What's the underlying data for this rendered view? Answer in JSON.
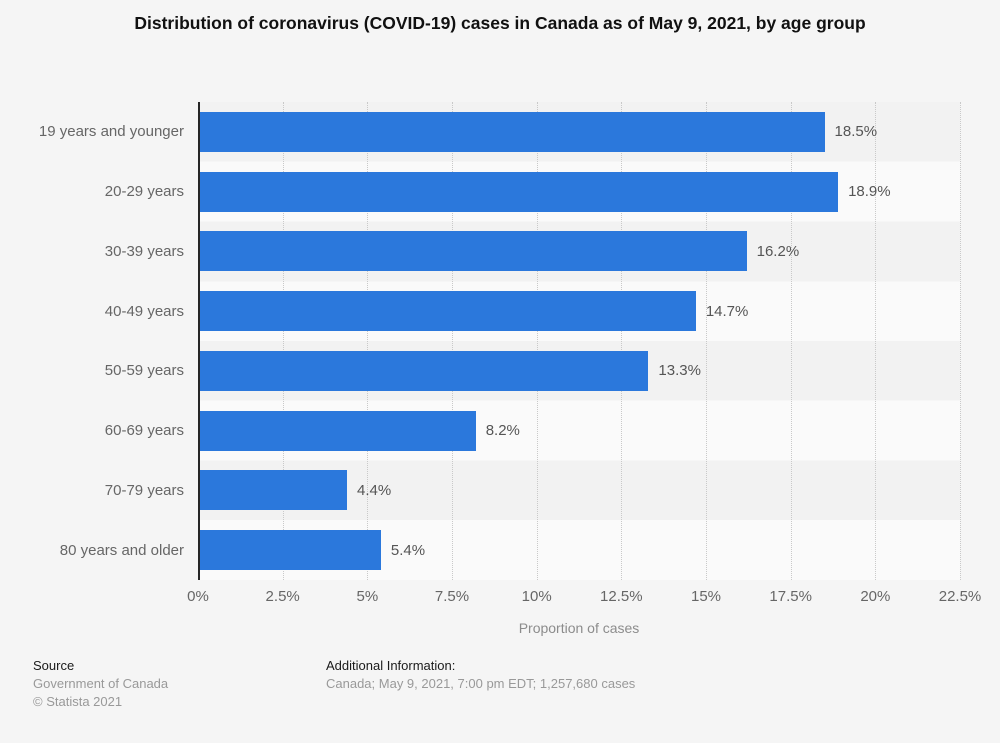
{
  "title": "Distribution of coronavirus (COVID-19) cases in Canada as of May 9, 2021, by age group",
  "chart_data": {
    "type": "bar",
    "orientation": "horizontal",
    "categories": [
      "19 years and younger",
      "20-29 years",
      "30-39 years",
      "40-49 years",
      "50-59 years",
      "60-69 years",
      "70-79 years",
      "80 years and older"
    ],
    "values": [
      18.5,
      18.9,
      16.2,
      14.7,
      13.3,
      8.2,
      4.4,
      5.4
    ],
    "value_labels": [
      "18.5%",
      "18.9%",
      "16.2%",
      "14.7%",
      "13.3%",
      "8.2%",
      "4.4%",
      "5.4%"
    ],
    "xlabel": "Proportion of cases",
    "ylabel": "",
    "xlim": [
      0,
      22.5
    ],
    "ticks": [
      0,
      2.5,
      5,
      7.5,
      10,
      12.5,
      15,
      17.5,
      20,
      22.5
    ],
    "tick_labels": [
      "0%",
      "2.5%",
      "5%",
      "7.5%",
      "10%",
      "12.5%",
      "15%",
      "17.5%",
      "20%",
      "22.5%"
    ],
    "grid": "vertical-dotted",
    "legend": "none",
    "colors": {
      "bar": "#2b78dc",
      "stripe_odd": "#f2f2f2",
      "stripe_even": "#fafafa",
      "axis_line": "#262626",
      "gridline": "#c9c9c9",
      "page_background": "#f5f5f5"
    }
  },
  "footer": {
    "source_label": "Source",
    "source_lines": [
      "Government of Canada",
      "© Statista 2021"
    ],
    "additional_label": "Additional Information:",
    "additional_text": "Canada; May 9, 2021, 7:00 pm EDT; 1,257,680 cases"
  }
}
